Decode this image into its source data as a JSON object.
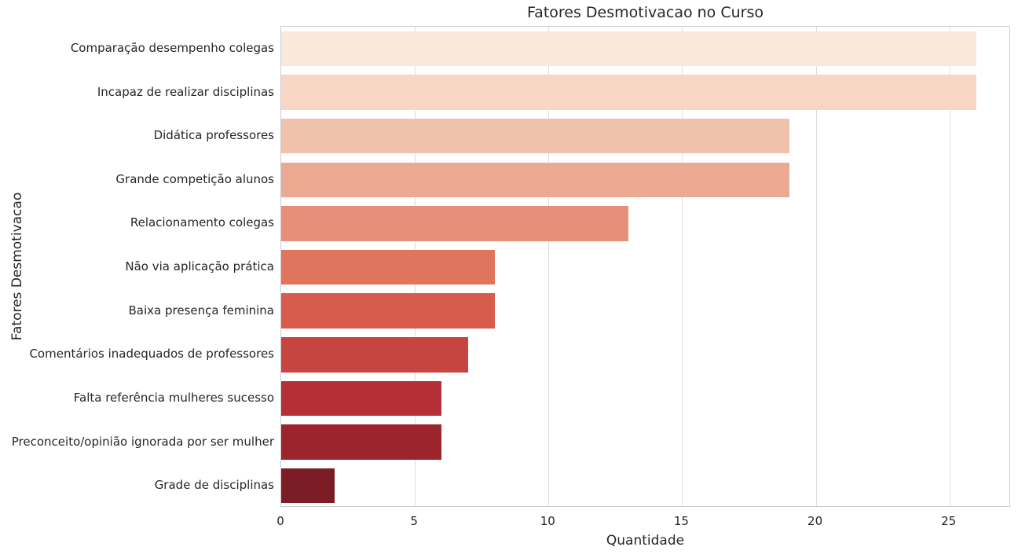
{
  "chart_data": {
    "type": "bar",
    "orientation": "horizontal",
    "title": "Fatores Desmotivacao no Curso",
    "xlabel": "Quantidade",
    "ylabel": "Fatores Desmotivacao",
    "categories": [
      "Comparação desempenho colegas",
      "Incapaz de realizar disciplinas",
      "Didática professores",
      "Grande competição alunos",
      "Relacionamento colegas",
      "Não via aplicação prática",
      "Baixa presença feminina",
      "Comentários inadequados de professores",
      "Falta referência mulheres sucesso",
      "Preconceito/opinião ignorada por ser mulher",
      "Grade de disciplinas"
    ],
    "values": [
      26,
      26,
      19,
      19,
      13,
      8,
      8,
      7,
      6,
      6,
      2
    ],
    "bar_colors": [
      "#fbe8dc",
      "#f7d6c5",
      "#f0c1ab",
      "#eba893",
      "#e78f78",
      "#e0745d",
      "#d75c4e",
      "#c74541",
      "#b52f37",
      "#9c242c",
      "#7c1d26"
    ],
    "xticks": [
      0,
      5,
      10,
      15,
      20,
      25
    ],
    "xlim": [
      0,
      27.3
    ],
    "grid": "vertical",
    "legend": "none",
    "grid_color": "#dddddd",
    "spine_color": "#cccccc",
    "text_color": "#262626",
    "background_color": "#ffffff"
  }
}
